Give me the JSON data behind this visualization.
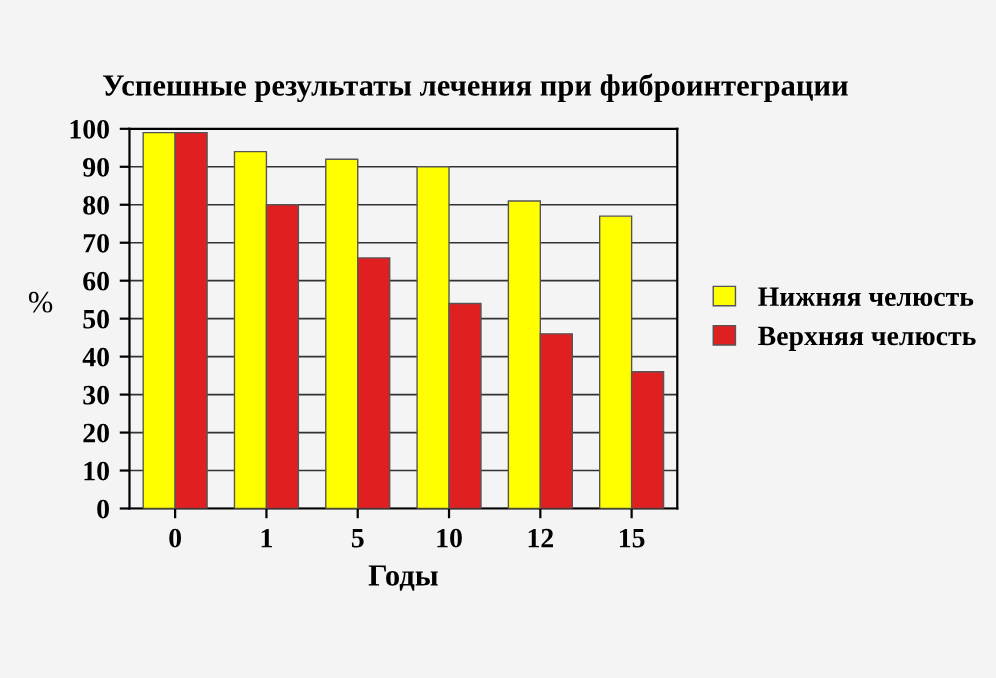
{
  "chart_data": {
    "type": "bar",
    "title": "Успешные результаты лечения при фиброинтеграции",
    "xlabel": "Годы",
    "ylabel": "%",
    "categories": [
      "0",
      "1",
      "5",
      "10",
      "12",
      "15"
    ],
    "series": [
      {
        "name": "Нижняя челюсть",
        "color": "#ffff00",
        "values": [
          99,
          94,
          92,
          90,
          81,
          77
        ]
      },
      {
        "name": "Верхняя челюсть",
        "color": "#e02020",
        "values": [
          99,
          80,
          66,
          54,
          46,
          36
        ]
      }
    ],
    "ylim": [
      0,
      100
    ],
    "yticks": [
      0,
      10,
      20,
      30,
      40,
      50,
      60,
      70,
      80,
      90,
      100
    ],
    "grid": "y",
    "legend": "right"
  }
}
